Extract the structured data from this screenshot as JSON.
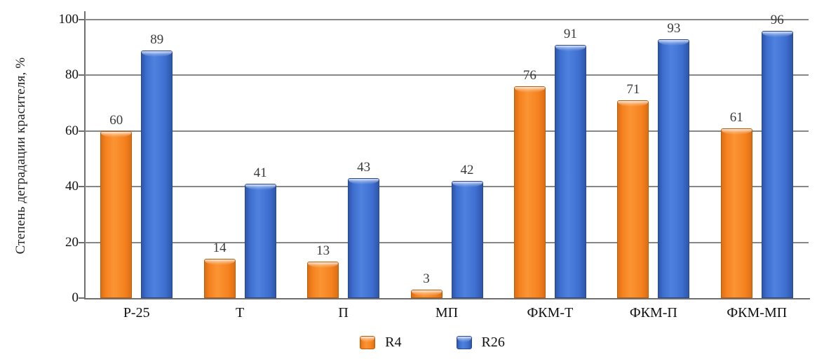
{
  "chart_data": {
    "type": "bar",
    "title": "",
    "categories": [
      "Р-25",
      "Т",
      "П",
      "МП",
      "ФКМ-Т",
      "ФКМ-П",
      "ФКМ-МП"
    ],
    "series": [
      {
        "name": "R4",
        "values": [
          60,
          14,
          13,
          3,
          76,
          71,
          61
        ],
        "color": "#F5821F",
        "color_light": "#FB9434",
        "color_edge": "#DD6E12",
        "color_border": "#B55E0D"
      },
      {
        "name": "R26",
        "values": [
          89,
          41,
          43,
          42,
          91,
          93,
          96
        ],
        "color": "#3E6FD0",
        "color_light": "#4F82DF",
        "color_edge": "#2E56AB",
        "color_border": "#26488C"
      }
    ],
    "xlabel": "",
    "ylabel": "Степень деградации красителя, %",
    "ylim": [
      0,
      100
    ],
    "yticks": [
      0,
      20,
      40,
      60,
      80,
      100
    ],
    "grid": true,
    "legend_position": "bottom"
  }
}
